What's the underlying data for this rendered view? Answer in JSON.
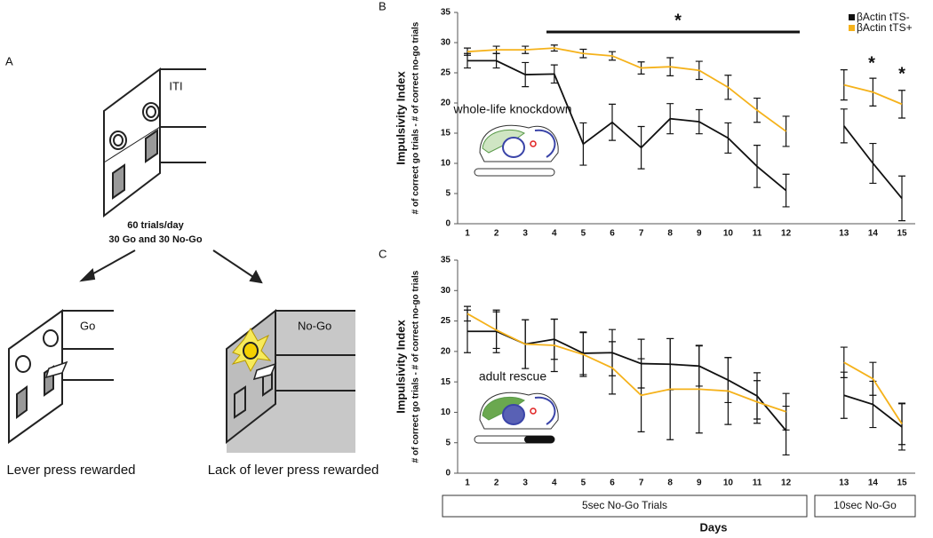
{
  "panel_a": {
    "label": "A",
    "iti": "ITI",
    "trials_line1": "60 trials/day",
    "trials_line2": "30 Go and 30 No-Go",
    "go": "Go",
    "nogo": "No-Go",
    "go_caption": "Lever press rewarded",
    "nogo_caption": "Lack of lever press rewarded"
  },
  "chart_data": [
    {
      "type": "line",
      "panel": "B",
      "ylabel": "Impulsivity Index",
      "ylabel_sub": "# of correct go trials - # of correct no-go trials",
      "inset": "whole-life knockdown",
      "categories": [
        "1",
        "2",
        "3",
        "4",
        "5",
        "6",
        "7",
        "8",
        "9",
        "10",
        "11",
        "12",
        null,
        "13",
        "14",
        "15"
      ],
      "series": [
        {
          "name": "βActin tTS-",
          "color": "#111111",
          "values": [
            27,
            27,
            24.7,
            24.8,
            13.2,
            16.8,
            12.6,
            17.4,
            16.9,
            14.2,
            9.5,
            5.5,
            null,
            16.2,
            10,
            4.2
          ],
          "errors": [
            1.2,
            1.2,
            2,
            1.5,
            3.5,
            3,
            3.5,
            2.5,
            2,
            2.5,
            3.5,
            2.7,
            null,
            2.8,
            3.3,
            3.7
          ]
        },
        {
          "name": "βActin tTS+",
          "color": "#f5b21b",
          "values": [
            28.5,
            28.8,
            28.8,
            29.1,
            28.2,
            27.8,
            25.8,
            26,
            25.4,
            22.6,
            18.8,
            15.3,
            null,
            23,
            21.8,
            19.8
          ],
          "errors": [
            0.6,
            0.6,
            0.6,
            0.5,
            0.7,
            0.7,
            1,
            1.5,
            1.5,
            2,
            2,
            2.5,
            null,
            2.5,
            2.3,
            2.3
          ]
        }
      ],
      "annotations": [
        "*",
        "*",
        "*"
      ],
      "ylim": [
        0,
        35
      ],
      "yticks": [
        0,
        5,
        10,
        15,
        20,
        25,
        30,
        35
      ],
      "legend": "top-right"
    },
    {
      "type": "line",
      "panel": "C",
      "ylabel": "Impulsivity Index",
      "ylabel_sub": "# of correct go trials - # of correct no-go trials",
      "inset": "adult rescue",
      "categories": [
        "1",
        "2",
        "3",
        "4",
        "5",
        "6",
        "7",
        "8",
        "9",
        "10",
        "11",
        "12",
        null,
        "13",
        "14",
        "15"
      ],
      "series": [
        {
          "name": "βActin tTS-",
          "color": "#111111",
          "values": [
            23.3,
            23.3,
            21.2,
            22,
            19.7,
            19.8,
            18,
            17.9,
            17.6,
            15.3,
            12.7,
            7,
            null,
            12.8,
            11.3,
            7.6
          ],
          "errors": [
            3.5,
            3.5,
            4,
            3.3,
            3.5,
            3.8,
            4,
            4.2,
            3.3,
            3.7,
            3.8,
            4,
            null,
            3.8,
            3.8,
            3.8
          ]
        },
        {
          "name": "βActin tTS+",
          "color": "#f5b21b",
          "values": [
            26.2,
            23.5,
            21.2,
            21,
            19.5,
            17.3,
            12.8,
            13.8,
            13.8,
            13.5,
            11.7,
            10.1,
            null,
            18.2,
            15.5,
            8.1
          ],
          "errors": [
            1.2,
            3,
            4,
            4.3,
            3.6,
            4.3,
            6,
            8.3,
            7.2,
            5.5,
            3.5,
            3,
            null,
            2.5,
            2.7,
            3.4
          ]
        }
      ],
      "groups": [
        "5sec No-Go Trials",
        "10sec No-Go"
      ],
      "xlabel": "Days",
      "ylim": [
        0,
        35
      ],
      "yticks": [
        0,
        5,
        10,
        15,
        20,
        25,
        30,
        35
      ]
    }
  ]
}
